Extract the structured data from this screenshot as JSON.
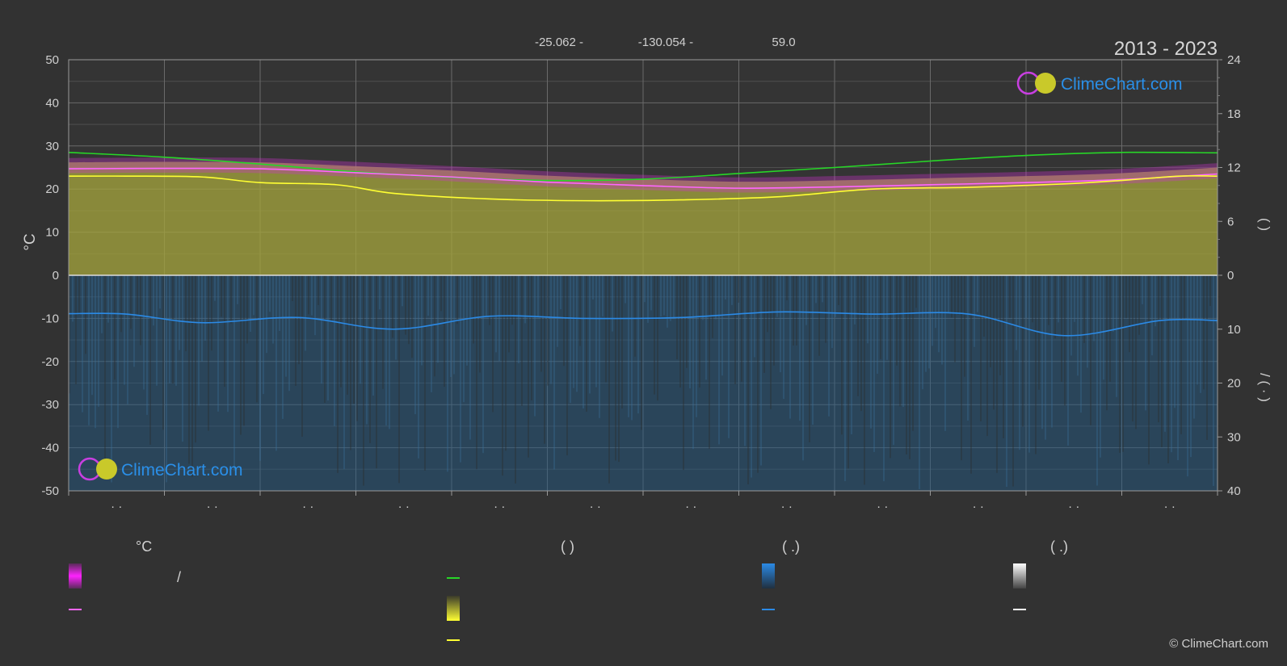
{
  "header": {
    "latitude": "-25.062 -",
    "longitude": "-130.054 -",
    "elevation": "59.0",
    "period": "2013 - 2023"
  },
  "brand": {
    "logo_text": "ClimeChart.com",
    "copyright": "© ClimeChart.com"
  },
  "colors": {
    "background": "#323232",
    "temperature_fill": "#a6a63c",
    "precipitation_fill": "#1f5a8a",
    "max_temp_line": "#27d627",
    "mean_temp_line": "#ff66ff",
    "min_temp_line": "#ffff33",
    "precip_line": "#2b8ae6",
    "humidity_band": "#cc33cc"
  },
  "chart_data": {
    "type": "line",
    "months_count": 12,
    "month_tick_labels": [
      "· ·",
      "· ·",
      "· ·",
      "· ·",
      "· ·",
      "· ·",
      "· ·",
      "· ·",
      "· ·",
      "· ·",
      "· ·",
      "· ·"
    ],
    "y_left": {
      "label": "°C",
      "range": [
        -50,
        50
      ],
      "ticks": [
        50,
        40,
        30,
        20,
        10,
        0,
        -10,
        -20,
        -30,
        -40,
        -50
      ]
    },
    "y_right_top": {
      "label": "( )",
      "range": [
        0,
        24
      ],
      "ticks": [
        24,
        18,
        12,
        6,
        0
      ]
    },
    "y_right_bottom": {
      "label": "/ ( · )",
      "range": [
        0,
        40
      ],
      "ticks": [
        10,
        20,
        30,
        40
      ]
    },
    "grid": true,
    "series": [
      {
        "key": "max_temp",
        "x": [
          0,
          1,
          2,
          3,
          4,
          5,
          6,
          7,
          8,
          9,
          10,
          11,
          12
        ],
        "values": [
          28.5,
          27.4,
          25.8,
          24.0,
          22.7,
          22.0,
          22.3,
          23.6,
          25.0,
          26.5,
          27.8,
          28.5,
          28.4
        ]
      },
      {
        "key": "mean_temp",
        "x": [
          0,
          1,
          2,
          3,
          4,
          5,
          6,
          7,
          8,
          9,
          10,
          11,
          12
        ],
        "values": [
          24.7,
          24.8,
          24.7,
          23.8,
          22.8,
          21.6,
          20.8,
          20.2,
          20.5,
          21.0,
          21.5,
          22.2,
          23.5
        ]
      },
      {
        "key": "min_temp",
        "x": [
          0,
          0.6,
          1.4,
          2,
          2.8,
          3.4,
          4.4,
          5.4,
          6.4,
          7.4,
          8.4,
          9.4,
          10.4,
          11,
          11.6,
          12
        ],
        "values": [
          23.0,
          23.0,
          22.8,
          21.5,
          21.0,
          19.0,
          17.7,
          17.3,
          17.5,
          18.2,
          20.0,
          20.4,
          21.2,
          22.0,
          23.0,
          23.0
        ]
      },
      {
        "key": "precipitation",
        "x": [
          0,
          0.6,
          1.4,
          2.4,
          3.4,
          4.4,
          5.4,
          6.4,
          7.4,
          8.4,
          9.4,
          10.4,
          11.4,
          12
        ],
        "values": [
          -8.9,
          -9.0,
          -11.0,
          -9.8,
          -12.5,
          -9.5,
          -10.0,
          -9.8,
          -8.5,
          -9.0,
          -9.0,
          -14.0,
          -10.5,
          -10.5
        ]
      }
    ]
  },
  "legend": {
    "col1_title": "°C",
    "col1_slash": "/",
    "col2_title": "(          )",
    "col3_title": "(    .)",
    "col4_title": "(    .)"
  }
}
